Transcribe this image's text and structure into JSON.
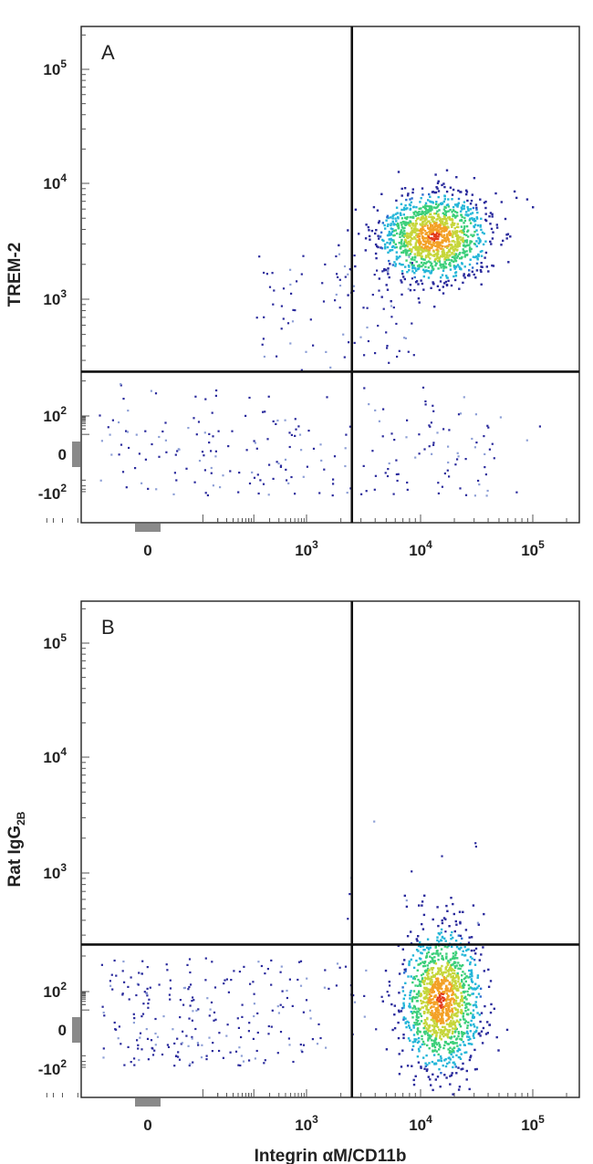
{
  "chart_data": [
    {
      "type": "scatter",
      "panel_label": "A",
      "ylabel": "TREM-2",
      "xlabel": "",
      "x_scale": "biexponential",
      "y_scale": "biexponential",
      "x_ticks": [
        {
          "value": 0,
          "label": "0"
        },
        {
          "value": 1000,
          "label": "10",
          "sup": "3"
        },
        {
          "value": 10000,
          "label": "10",
          "sup": "4"
        },
        {
          "value": 100000,
          "label": "10",
          "sup": "5"
        }
      ],
      "y_ticks": [
        {
          "value": -100,
          "label": "-10",
          "sup": "2"
        },
        {
          "value": 0,
          "label": "0"
        },
        {
          "value": 100,
          "label": "10",
          "sup": "2"
        },
        {
          "value": 1000,
          "label": "10",
          "sup": "3"
        },
        {
          "value": 10000,
          "label": "10",
          "sup": "4"
        },
        {
          "value": 100000,
          "label": "10",
          "sup": "5"
        }
      ],
      "quadrant_gate": {
        "x": 2500,
        "y": 240
      },
      "populations": [
        {
          "name": "main",
          "center_x": 13000,
          "center_y": 3500,
          "spread": "tight",
          "count": 1300
        },
        {
          "name": "scatter_low",
          "count": 320
        }
      ],
      "color_scale": [
        "#2a2a9c",
        "#2f6fd0",
        "#24b6d8",
        "#3ccf7a",
        "#c6d63a",
        "#f3a127",
        "#e33a1c"
      ]
    },
    {
      "type": "scatter",
      "panel_label": "B",
      "ylabel": "Rat IgG",
      "ylabel_sub": "2B",
      "xlabel": "Integrin αM/CD11b",
      "x_scale": "biexponential",
      "y_scale": "biexponential",
      "x_ticks": [
        {
          "value": 0,
          "label": "0"
        },
        {
          "value": 1000,
          "label": "10",
          "sup": "3"
        },
        {
          "value": 10000,
          "label": "10",
          "sup": "4"
        },
        {
          "value": 100000,
          "label": "10",
          "sup": "5"
        }
      ],
      "y_ticks": [
        {
          "value": -100,
          "label": "-10",
          "sup": "2"
        },
        {
          "value": 0,
          "label": "0"
        },
        {
          "value": 100,
          "label": "10",
          "sup": "2"
        },
        {
          "value": 1000,
          "label": "10",
          "sup": "3"
        },
        {
          "value": 10000,
          "label": "10",
          "sup": "4"
        },
        {
          "value": 100000,
          "label": "10",
          "sup": "5"
        }
      ],
      "quadrant_gate": {
        "x": 2500,
        "y": 250
      },
      "populations": [
        {
          "name": "main",
          "center_x": 15000,
          "center_y": 40,
          "spread": "tall",
          "count": 1300
        },
        {
          "name": "scatter_low",
          "count": 260
        }
      ],
      "color_scale": [
        "#2a2a9c",
        "#2f6fd0",
        "#24b6d8",
        "#3ccf7a",
        "#c6d63a",
        "#f3a127",
        "#e33a1c"
      ]
    }
  ]
}
